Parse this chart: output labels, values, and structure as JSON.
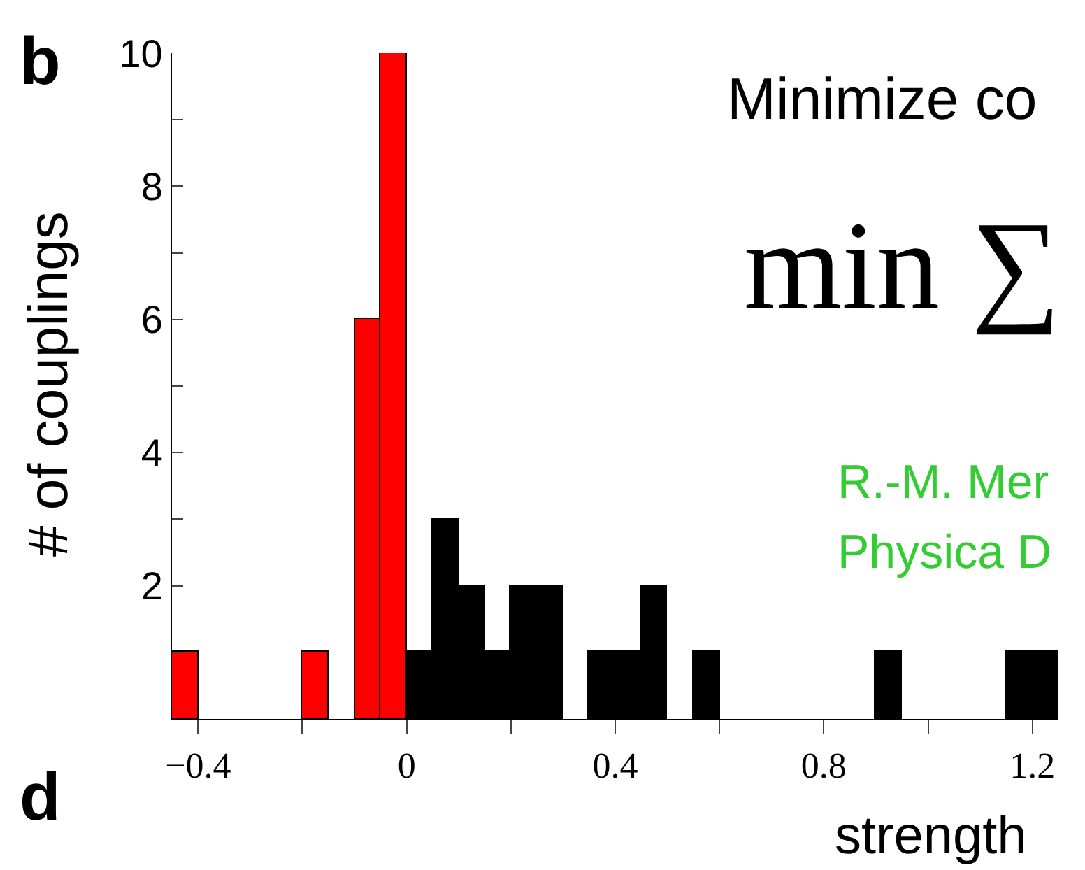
{
  "chart_data": {
    "type": "histogram",
    "xlabel": "strength",
    "ylabel": "# of couplings",
    "bins": [
      -0.45,
      -0.4,
      -0.35,
      -0.3,
      -0.25,
      -0.2,
      -0.15,
      -0.1,
      -0.05,
      0,
      0.05,
      0.1,
      0.15,
      0.2,
      0.25,
      0.3,
      0.35,
      0.4,
      0.45,
      0.5,
      0.55,
      0.6,
      0.65,
      0.7,
      0.75,
      0.8,
      0.85,
      0.9,
      0.95,
      1.0,
      1.05,
      1.1,
      1.15,
      1.2,
      1.25
    ],
    "values": [
      1,
      0,
      0,
      0,
      0,
      1,
      0,
      6,
      10,
      1,
      3,
      2,
      1,
      2,
      2,
      0,
      1,
      1,
      2,
      0,
      1,
      0,
      0,
      0,
      0,
      0,
      0,
      1,
      0,
      0,
      0,
      0,
      1,
      1
    ],
    "colors": [
      "#ff0000",
      "#ff0000",
      "#ff0000",
      "#ff0000",
      "#ff0000",
      "#ff0000",
      "#ff0000",
      "#ff0000",
      "#ff0000",
      "#000000",
      "#000000",
      "#000000",
      "#000000",
      "#000000",
      "#000000",
      "#000000",
      "#000000",
      "#000000",
      "#000000",
      "#000000",
      "#000000",
      "#000000",
      "#000000",
      "#000000",
      "#000000",
      "#000000",
      "#000000",
      "#000000",
      "#000000",
      "#000000",
      "#000000",
      "#000000",
      "#000000",
      "#000000"
    ],
    "xlim": [
      -0.45,
      1.25
    ],
    "xticks": [
      {
        "value": -0.4,
        "label": "−0.4"
      },
      {
        "value": -0.2,
        "label": null
      },
      0,
      {
        "value": 0.2,
        "label": null
      },
      0.4,
      {
        "value": 0.6,
        "label": null
      },
      0.8,
      {
        "value": 1.0,
        "label": null
      },
      1.2
    ],
    "ylim": [
      0,
      10
    ],
    "yticks": [
      {
        "value": 1,
        "label": null
      },
      2,
      {
        "value": 3,
        "label": null
      },
      4,
      {
        "value": 5,
        "label": null
      },
      6,
      {
        "value": 7,
        "label": null
      },
      8,
      {
        "value": 9,
        "label": null
      },
      10
    ],
    "annotations": [
      "b",
      "d",
      "Minimize co",
      "min ∑",
      "R.-M. Mer",
      "Physica D"
    ]
  }
}
